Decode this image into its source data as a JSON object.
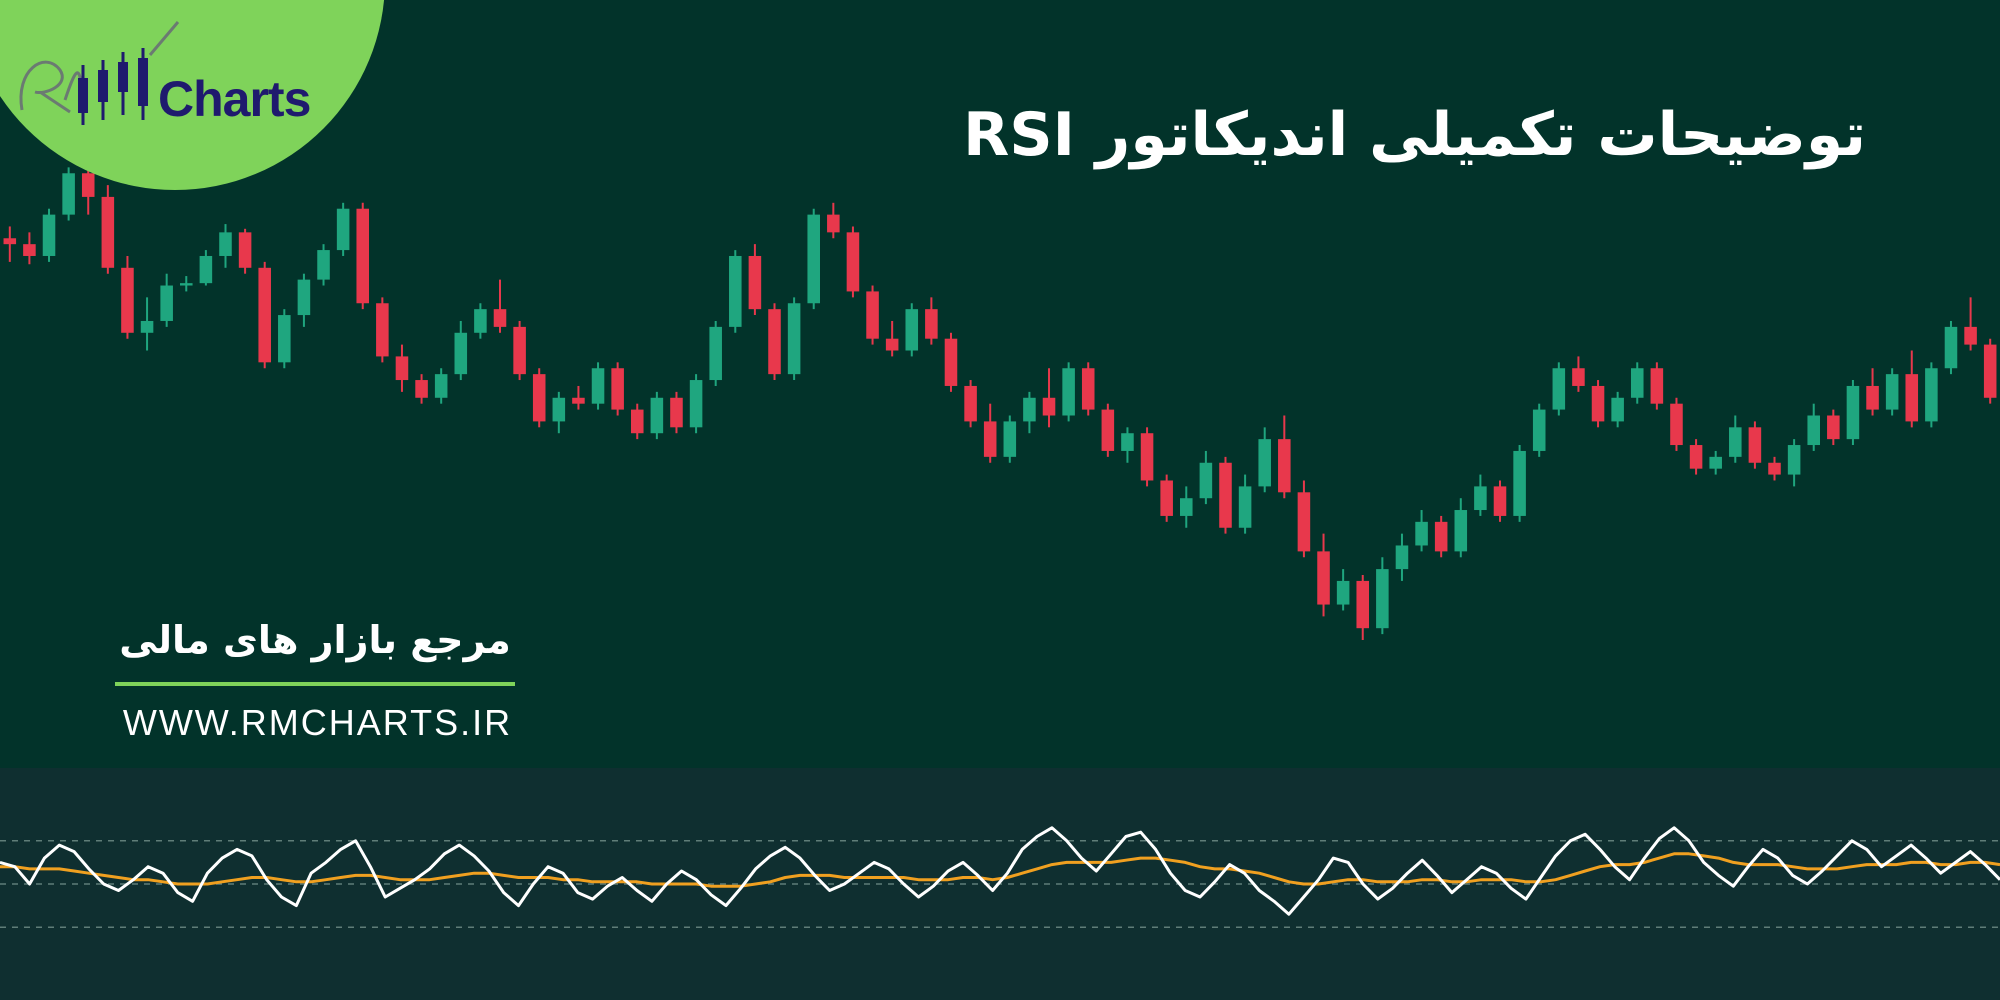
{
  "header": {
    "title": "توضیحات تکمیلی اندیکاتور RSI"
  },
  "branding": {
    "logo_name": "Charts",
    "logo_mark": "RM",
    "tagline": "مرجع بازار های مالی",
    "website": "WWW.RMCHARTS.IR"
  },
  "colors": {
    "background": "#02332a",
    "indicator_panel": "#0f2f30",
    "bullish": "#1fa67f",
    "bearish": "#e8384c",
    "rsi_line": "#ffffff",
    "rsi_ma": "#f0a020",
    "logo_badge": "#7fd35a",
    "logo_text": "#1f1a6e"
  },
  "chart_data": [
    {
      "type": "candlestick",
      "title": "",
      "grid": false,
      "candles": [
        {
          "o": 50,
          "h": 60,
          "l": 30,
          "c": 45
        },
        {
          "o": 45,
          "h": 55,
          "l": 28,
          "c": 35
        },
        {
          "o": 35,
          "h": 75,
          "l": 30,
          "c": 70
        },
        {
          "o": 70,
          "h": 110,
          "l": 65,
          "c": 105
        },
        {
          "o": 105,
          "h": 112,
          "l": 70,
          "c": 85
        },
        {
          "o": 85,
          "h": 95,
          "l": 20,
          "c": 25
        },
        {
          "o": 25,
          "h": 35,
          "l": -35,
          "c": -30
        },
        {
          "o": -30,
          "h": 0,
          "l": -45,
          "c": -20
        },
        {
          "o": -20,
          "h": 20,
          "l": -25,
          "c": 10
        },
        {
          "o": 10,
          "h": 18,
          "l": 5,
          "c": 12
        },
        {
          "o": 12,
          "h": 40,
          "l": 10,
          "c": 35
        },
        {
          "o": 35,
          "h": 62,
          "l": 25,
          "c": 55
        },
        {
          "o": 55,
          "h": 58,
          "l": 20,
          "c": 25
        },
        {
          "o": 25,
          "h": 30,
          "l": -60,
          "c": -55
        },
        {
          "o": -55,
          "h": -10,
          "l": -60,
          "c": -15
        },
        {
          "o": -15,
          "h": 20,
          "l": -25,
          "c": 15
        },
        {
          "o": 15,
          "h": 45,
          "l": 10,
          "c": 40
        },
        {
          "o": 40,
          "h": 80,
          "l": 35,
          "c": 75
        },
        {
          "o": 75,
          "h": 80,
          "l": -10,
          "c": -5
        },
        {
          "o": -5,
          "h": 0,
          "l": -55,
          "c": -50
        },
        {
          "o": -50,
          "h": -40,
          "l": -80,
          "c": -70
        },
        {
          "o": -70,
          "h": -65,
          "l": -90,
          "c": -85
        },
        {
          "o": -85,
          "h": -60,
          "l": -90,
          "c": -65
        },
        {
          "o": -65,
          "h": -20,
          "l": -70,
          "c": -30
        },
        {
          "o": -30,
          "h": -5,
          "l": -35,
          "c": -10
        },
        {
          "o": -10,
          "h": 15,
          "l": -30,
          "c": -25
        },
        {
          "o": -25,
          "h": -20,
          "l": -70,
          "c": -65
        },
        {
          "o": -65,
          "h": -60,
          "l": -110,
          "c": -105
        },
        {
          "o": -105,
          "h": -80,
          "l": -115,
          "c": -85
        },
        {
          "o": -85,
          "h": -75,
          "l": -95,
          "c": -90
        },
        {
          "o": -90,
          "h": -55,
          "l": -95,
          "c": -60
        },
        {
          "o": -60,
          "h": -55,
          "l": -100,
          "c": -95
        },
        {
          "o": -95,
          "h": -90,
          "l": -120,
          "c": -115
        },
        {
          "o": -115,
          "h": -80,
          "l": -120,
          "c": -85
        },
        {
          "o": -85,
          "h": -80,
          "l": -115,
          "c": -110
        },
        {
          "o": -110,
          "h": -65,
          "l": -115,
          "c": -70
        },
        {
          "o": -70,
          "h": -20,
          "l": -75,
          "c": -25
        },
        {
          "o": -25,
          "h": 40,
          "l": -30,
          "c": 35
        },
        {
          "o": 35,
          "h": 45,
          "l": -15,
          "c": -10
        },
        {
          "o": -10,
          "h": -5,
          "l": -70,
          "c": -65
        },
        {
          "o": -65,
          "h": 0,
          "l": -70,
          "c": -5
        },
        {
          "o": -5,
          "h": 75,
          "l": -10,
          "c": 70
        },
        {
          "o": 70,
          "h": 80,
          "l": 50,
          "c": 55
        },
        {
          "o": 55,
          "h": 60,
          "l": 0,
          "c": 5
        },
        {
          "o": 5,
          "h": 10,
          "l": -40,
          "c": -35
        },
        {
          "o": -35,
          "h": -20,
          "l": -50,
          "c": -45
        },
        {
          "o": -45,
          "h": -5,
          "l": -50,
          "c": -10
        },
        {
          "o": -10,
          "h": 0,
          "l": -40,
          "c": -35
        },
        {
          "o": -35,
          "h": -30,
          "l": -80,
          "c": -75
        },
        {
          "o": -75,
          "h": -70,
          "l": -110,
          "c": -105
        },
        {
          "o": -105,
          "h": -90,
          "l": -140,
          "c": -135
        },
        {
          "o": -135,
          "h": -100,
          "l": -140,
          "c": -105
        },
        {
          "o": -105,
          "h": -80,
          "l": -115,
          "c": -85
        },
        {
          "o": -85,
          "h": -60,
          "l": -110,
          "c": -100
        },
        {
          "o": -100,
          "h": -55,
          "l": -105,
          "c": -60
        },
        {
          "o": -60,
          "h": -55,
          "l": -100,
          "c": -95
        },
        {
          "o": -95,
          "h": -90,
          "l": -135,
          "c": -130
        },
        {
          "o": -130,
          "h": -110,
          "l": -140,
          "c": -115
        },
        {
          "o": -115,
          "h": -110,
          "l": -160,
          "c": -155
        },
        {
          "o": -155,
          "h": -150,
          "l": -190,
          "c": -185
        },
        {
          "o": -185,
          "h": -160,
          "l": -195,
          "c": -170
        },
        {
          "o": -170,
          "h": -130,
          "l": -175,
          "c": -140
        },
        {
          "o": -140,
          "h": -135,
          "l": -200,
          "c": -195
        },
        {
          "o": -195,
          "h": -150,
          "l": -200,
          "c": -160
        },
        {
          "o": -160,
          "h": -110,
          "l": -165,
          "c": -120
        },
        {
          "o": -120,
          "h": -100,
          "l": -170,
          "c": -165
        },
        {
          "o": -165,
          "h": -155,
          "l": -220,
          "c": -215
        },
        {
          "o": -215,
          "h": -200,
          "l": -270,
          "c": -260
        },
        {
          "o": -260,
          "h": -230,
          "l": -265,
          "c": -240
        },
        {
          "o": -240,
          "h": -235,
          "l": -290,
          "c": -280
        },
        {
          "o": -280,
          "h": -220,
          "l": -285,
          "c": -230
        },
        {
          "o": -230,
          "h": -200,
          "l": -240,
          "c": -210
        },
        {
          "o": -210,
          "h": -180,
          "l": -215,
          "c": -190
        },
        {
          "o": -190,
          "h": -185,
          "l": -220,
          "c": -215
        },
        {
          "o": -215,
          "h": -170,
          "l": -220,
          "c": -180
        },
        {
          "o": -180,
          "h": -150,
          "l": -185,
          "c": -160
        },
        {
          "o": -160,
          "h": -155,
          "l": -190,
          "c": -185
        },
        {
          "o": -185,
          "h": -125,
          "l": -190,
          "c": -130
        },
        {
          "o": -130,
          "h": -90,
          "l": -135,
          "c": -95
        },
        {
          "o": -95,
          "h": -55,
          "l": -100,
          "c": -60
        },
        {
          "o": -60,
          "h": -50,
          "l": -80,
          "c": -75
        },
        {
          "o": -75,
          "h": -70,
          "l": -110,
          "c": -105
        },
        {
          "o": -105,
          "h": -80,
          "l": -110,
          "c": -85
        },
        {
          "o": -85,
          "h": -55,
          "l": -90,
          "c": -60
        },
        {
          "o": -60,
          "h": -55,
          "l": -95,
          "c": -90
        },
        {
          "o": -90,
          "h": -85,
          "l": -130,
          "c": -125
        },
        {
          "o": -125,
          "h": -120,
          "l": -150,
          "c": -145
        },
        {
          "o": -145,
          "h": -130,
          "l": -150,
          "c": -135
        },
        {
          "o": -135,
          "h": -100,
          "l": -140,
          "c": -110
        },
        {
          "o": -110,
          "h": -105,
          "l": -145,
          "c": -140
        },
        {
          "o": -140,
          "h": -135,
          "l": -155,
          "c": -150
        },
        {
          "o": -150,
          "h": -120,
          "l": -160,
          "c": -125
        },
        {
          "o": -125,
          "h": -90,
          "l": -130,
          "c": -100
        },
        {
          "o": -100,
          "h": -95,
          "l": -125,
          "c": -120
        },
        {
          "o": -120,
          "h": -70,
          "l": -125,
          "c": -75
        },
        {
          "o": -75,
          "h": -60,
          "l": -100,
          "c": -95
        },
        {
          "o": -95,
          "h": -60,
          "l": -100,
          "c": -65
        },
        {
          "o": -65,
          "h": -45,
          "l": -110,
          "c": -105
        },
        {
          "o": -105,
          "h": -55,
          "l": -110,
          "c": -60
        },
        {
          "o": -60,
          "h": -20,
          "l": -65,
          "c": -25
        },
        {
          "o": -25,
          "h": 0,
          "l": -45,
          "c": -40
        },
        {
          "o": -40,
          "h": -35,
          "l": -90,
          "c": -85
        }
      ]
    },
    {
      "type": "line",
      "title": "",
      "ylim": [
        0,
        100
      ],
      "reference_lines": [
        70,
        50,
        30
      ],
      "grid": false,
      "series": [
        {
          "values": [
            60,
            58,
            50,
            62,
            68,
            65,
            57,
            50,
            47,
            52,
            58,
            55,
            46,
            42,
            55,
            62,
            66,
            63,
            52,
            44,
            40,
            55,
            60,
            66,
            70,
            58,
            44,
            48,
            52,
            57,
            64,
            68,
            63,
            56,
            46,
            40,
            50,
            58,
            55,
            46,
            43,
            49,
            53,
            47,
            42,
            50,
            56,
            52,
            45,
            40,
            48,
            57,
            63,
            67,
            62,
            54,
            47,
            50,
            55,
            60,
            57,
            50,
            44,
            49,
            56,
            60,
            54,
            47,
            55,
            66,
            72,
            76,
            70,
            62,
            56,
            64,
            72,
            74,
            66,
            55,
            47,
            44,
            51,
            59,
            55,
            47,
            42,
            36,
            44,
            52,
            62,
            60,
            50,
            43,
            48,
            55,
            61,
            54,
            46,
            52,
            58,
            55,
            48,
            43,
            53,
            63,
            70,
            73,
            66,
            58,
            52,
            62,
            71,
            76,
            70,
            60,
            54,
            49,
            58,
            66,
            62,
            54,
            50,
            56,
            63,
            70,
            66,
            58,
            63,
            68,
            62,
            55,
            60,
            65,
            59,
            52
          ]
        },
        {
          "values": [
            58,
            58,
            57,
            57,
            57,
            56,
            55,
            54,
            53,
            52,
            52,
            51,
            50,
            50,
            50,
            51,
            52,
            53,
            53,
            52,
            51,
            51,
            52,
            53,
            54,
            54,
            53,
            52,
            52,
            52,
            53,
            54,
            55,
            55,
            54,
            53,
            53,
            53,
            52,
            52,
            51,
            51,
            51,
            51,
            50,
            50,
            50,
            50,
            49,
            49,
            49,
            50,
            51,
            53,
            54,
            54,
            54,
            53,
            53,
            53,
            53,
            53,
            52,
            52,
            52,
            53,
            53,
            52,
            53,
            55,
            57,
            59,
            60,
            60,
            60,
            60,
            61,
            62,
            62,
            61,
            60,
            58,
            57,
            57,
            56,
            55,
            53,
            51,
            50,
            50,
            51,
            52,
            52,
            51,
            51,
            51,
            52,
            52,
            51,
            51,
            52,
            52,
            52,
            51,
            51,
            52,
            54,
            56,
            58,
            59,
            59,
            60,
            62,
            64,
            64,
            63,
            62,
            60,
            59,
            59,
            59,
            58,
            57,
            57,
            57,
            58,
            59,
            59,
            59,
            60,
            60,
            59,
            59,
            60,
            60,
            59
          ]
        }
      ]
    }
  ]
}
